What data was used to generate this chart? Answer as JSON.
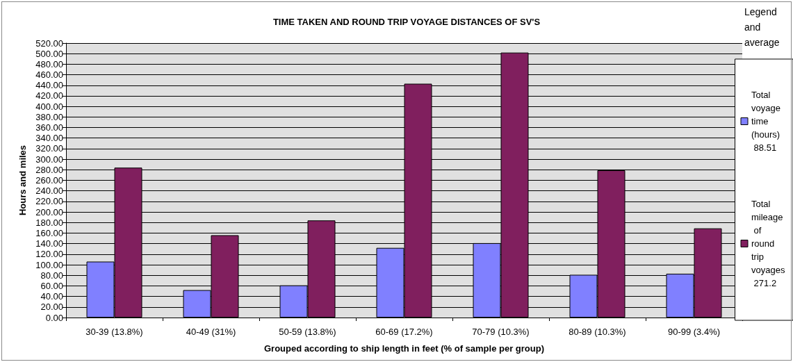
{
  "chart_data": {
    "type": "bar",
    "title": "TIME TAKEN AND ROUND TRIP VOYAGE DISTANCES OF SV'S",
    "xlabel": "Grouped according to ship length in feet (% of sample per group)",
    "ylabel": "Hours and miles",
    "legend_title": "Legend and average",
    "categories": [
      "30-39 (13.8%)",
      "40-49 (31%)",
      "50-59 (13.8%)",
      "60-69 (17.2%)",
      "70-79 (10.3%)",
      "80-89 (10.3%)",
      "90-99 (3.4%)"
    ],
    "series": [
      {
        "name": "Total voyage time (hours) 88.51",
        "color": "#8080ff",
        "values": [
          106,
          52,
          61,
          132,
          141,
          81,
          83
        ]
      },
      {
        "name": "Total mileage of round trip voyages 271.2",
        "color": "#801f5e",
        "values": [
          284,
          156,
          184,
          443,
          502,
          279,
          169
        ]
      }
    ],
    "ylim": [
      0,
      520
    ],
    "yticks": [
      {
        "value": 0,
        "label": "0.00"
      },
      {
        "value": 20,
        "label": "20.00"
      },
      {
        "value": 40,
        "label": "40.00"
      },
      {
        "value": 60,
        "label": "60.00"
      },
      {
        "value": 80,
        "label": "80.00"
      },
      {
        "value": 100,
        "label": "100.00"
      },
      {
        "value": 120,
        "label": "120.00"
      },
      {
        "value": 140,
        "label": "140.00"
      },
      {
        "value": 160,
        "label": "160.00"
      },
      {
        "value": 180,
        "label": "180.00"
      },
      {
        "value": 200,
        "label": "200.00"
      },
      {
        "value": 220,
        "label": "220.00"
      },
      {
        "value": 240,
        "label": "240.00"
      },
      {
        "value": 260,
        "label": "260.00"
      },
      {
        "value": 280,
        "label": "280.00"
      },
      {
        "value": 300,
        "label": "300.00"
      },
      {
        "value": 320,
        "label": "320.00"
      },
      {
        "value": 340,
        "label": "340.00"
      },
      {
        "value": 360,
        "label": "360.00"
      },
      {
        "value": 380,
        "label": "380.00"
      },
      {
        "value": 400,
        "label": "400.00"
      },
      {
        "value": 420,
        "label": "420.00"
      },
      {
        "value": 440,
        "label": "440.00"
      },
      {
        "value": 460,
        "label": "460.00"
      },
      {
        "value": 480,
        "label": "480.00"
      },
      {
        "value": 500,
        "label": "500.00"
      },
      {
        "value": 520,
        "label": "520.00"
      }
    ],
    "grid": "y",
    "legend": "right"
  }
}
